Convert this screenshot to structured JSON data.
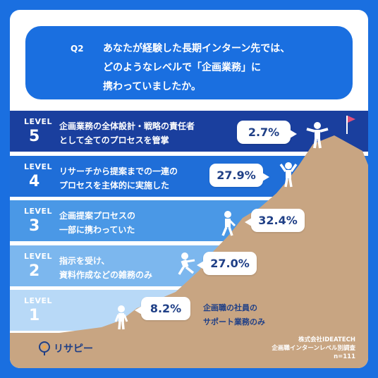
{
  "question": {
    "number": "Q2",
    "line1": "あなたが経験した長期インターン先では、",
    "line2": "どのようなレベルで「企画業務」に",
    "line3": "携わっていましたか。"
  },
  "colors": {
    "frame": "#1a6fe0",
    "level5": "#1a3f9e",
    "level4": "#1f6ed8",
    "level3": "#4a98e6",
    "level2": "#7cb7ee",
    "level1": "#b8d9f7",
    "mountain": "#c8a582",
    "figure": "#ffffff",
    "accent_text": "#1f3f86",
    "flag": "#e0507a"
  },
  "levels": [
    {
      "level_label": "LEVEL",
      "num": "5",
      "desc_line1": "企画業務の全体設計・戦略の責任者",
      "desc_line2": "として全てのプロセスを管掌"
    },
    {
      "level_label": "LEVEL",
      "num": "4",
      "desc_line1": "リサーチから提案までの一連の",
      "desc_line2": "プロセスを主体的に実施した"
    },
    {
      "level_label": "LEVEL",
      "num": "3",
      "desc_line1": "企画提案プロセスの",
      "desc_line2": "一部に携わっていた"
    },
    {
      "level_label": "LEVEL",
      "num": "2",
      "desc_line1": "指示を受け、",
      "desc_line2": "資料作成などの雑務のみ"
    },
    {
      "level_label": "LEVEL",
      "num": "1",
      "desc_line1": "",
      "desc_line2": ""
    }
  ],
  "bottom_note": {
    "line1": "企画職の社員の",
    "line2": "サポート業務のみ"
  },
  "chart_data": {
    "type": "bar",
    "categories": [
      "LEVEL 5",
      "LEVEL 4",
      "LEVEL 3",
      "LEVEL 2",
      "LEVEL 1"
    ],
    "values": [
      2.7,
      27.9,
      32.4,
      27.0,
      8.2
    ],
    "value_labels": [
      "2.7%",
      "27.9%",
      "32.4%",
      "27.0%",
      "8.2%"
    ]
  },
  "logo": {
    "text": "リサピー"
  },
  "source": {
    "line1": "株式会社IDEATECH",
    "line2": "企画職インターンレベル別調査",
    "line3": "n=111"
  }
}
